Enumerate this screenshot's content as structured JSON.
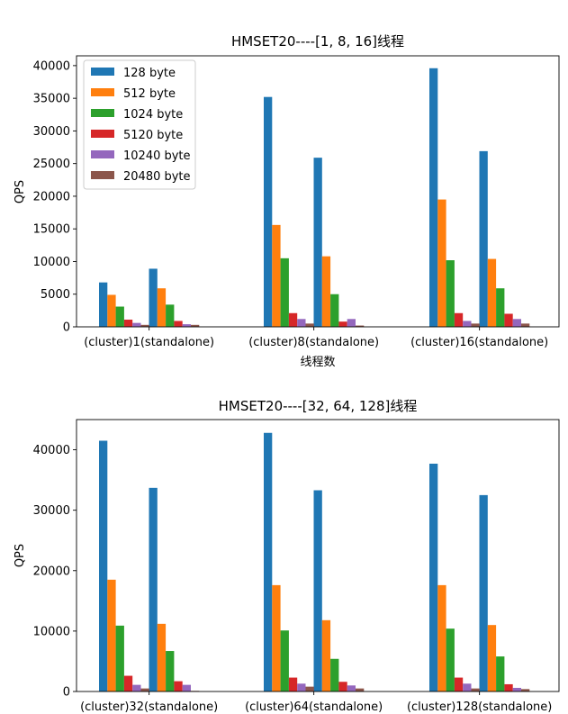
{
  "colors": [
    "#1f77b4",
    "#ff7f0e",
    "#2ca02c",
    "#d62728",
    "#9467bd",
    "#8c564b"
  ],
  "chart_data": [
    {
      "type": "bar",
      "title": "HMSET20----[1, 8, 16]线程",
      "xlabel": "线程数",
      "ylabel": "QPS",
      "ylim": [
        0,
        41500
      ],
      "yticks": [
        0,
        5000,
        10000,
        15000,
        20000,
        25000,
        30000,
        35000,
        40000
      ],
      "grid": false,
      "legend_position": "top-left",
      "groups": [
        {
          "cluster_label": "(cluster)1",
          "standalone_label": "(standalone)"
        },
        {
          "cluster_label": "(cluster)8",
          "standalone_label": "(standalone)"
        },
        {
          "cluster_label": "(cluster)16",
          "standalone_label": "(standalone)"
        }
      ],
      "series": [
        {
          "name": "128 byte",
          "cluster": [
            6800,
            35200,
            39600
          ],
          "standalone": [
            8900,
            25900,
            26900
          ]
        },
        {
          "name": "512 byte",
          "cluster": [
            4900,
            15600,
            19500
          ],
          "standalone": [
            5900,
            10800,
            10400
          ]
        },
        {
          "name": "1024 byte",
          "cluster": [
            3100,
            10500,
            10200
          ],
          "standalone": [
            3400,
            5000,
            5900
          ]
        },
        {
          "name": "5120 byte",
          "cluster": [
            1100,
            2100,
            2100
          ],
          "standalone": [
            900,
            800,
            2000
          ]
        },
        {
          "name": "10240 byte",
          "cluster": [
            600,
            1200,
            900
          ],
          "standalone": [
            400,
            1200,
            1200
          ]
        },
        {
          "name": "20480 byte",
          "cluster": [
            300,
            500,
            500
          ],
          "standalone": [
            300,
            200,
            500
          ]
        }
      ]
    },
    {
      "type": "bar",
      "title": "HMSET20----[32, 64, 128]线程",
      "xlabel": "",
      "ylabel": "QPS",
      "ylim": [
        0,
        45000
      ],
      "yticks": [
        0,
        10000,
        20000,
        30000,
        40000
      ],
      "grid": false,
      "groups": [
        {
          "cluster_label": "(cluster)32",
          "standalone_label": "(standalone)"
        },
        {
          "cluster_label": "(cluster)64",
          "standalone_label": "(standalone)"
        },
        {
          "cluster_label": "(cluster)128",
          "standalone_label": "(standalone)"
        }
      ],
      "series": [
        {
          "name": "128 byte",
          "cluster": [
            41500,
            42800,
            37700
          ],
          "standalone": [
            33700,
            33300,
            32500
          ]
        },
        {
          "name": "512 byte",
          "cluster": [
            18500,
            17600,
            17600
          ],
          "standalone": [
            11200,
            11800,
            11000
          ]
        },
        {
          "name": "1024 byte",
          "cluster": [
            10900,
            10100,
            10400
          ],
          "standalone": [
            6700,
            5400,
            5800
          ]
        },
        {
          "name": "5120 byte",
          "cluster": [
            2600,
            2300,
            2300
          ],
          "standalone": [
            1700,
            1600,
            1200
          ]
        },
        {
          "name": "10240 byte",
          "cluster": [
            1100,
            1300,
            1300
          ],
          "standalone": [
            1100,
            1000,
            600
          ]
        },
        {
          "name": "20480 byte",
          "cluster": [
            500,
            800,
            500
          ],
          "standalone": [
            100,
            500,
            400
          ]
        }
      ]
    }
  ]
}
